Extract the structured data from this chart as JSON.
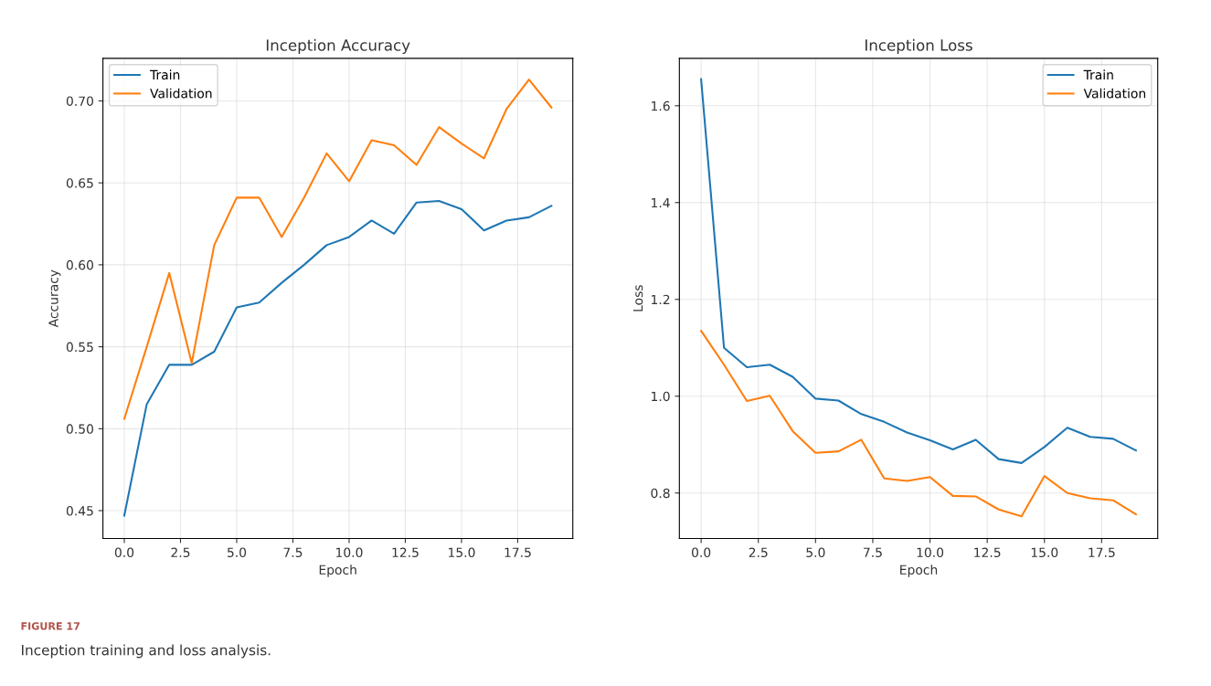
{
  "chart_data": [
    {
      "type": "line",
      "title": "Inception Accuracy",
      "xlabel": "Epoch",
      "ylabel": "Accuracy",
      "x": [
        0,
        1,
        2,
        3,
        4,
        5,
        6,
        7,
        8,
        9,
        10,
        11,
        12,
        13,
        14,
        15,
        16,
        17,
        18,
        19
      ],
      "series": [
        {
          "name": "Train",
          "color": "#1f77b4",
          "values": [
            0.447,
            0.515,
            0.539,
            0.539,
            0.547,
            0.574,
            0.577,
            0.589,
            0.6,
            0.612,
            0.617,
            0.627,
            0.619,
            0.638,
            0.639,
            0.634,
            0.621,
            0.627,
            0.629,
            0.636
          ]
        },
        {
          "name": "Validation",
          "color": "#ff7f0e",
          "values": [
            0.506,
            0.55,
            0.595,
            0.54,
            0.612,
            0.641,
            0.641,
            0.617,
            0.641,
            0.668,
            0.651,
            0.676,
            0.673,
            0.661,
            0.684,
            0.674,
            0.665,
            0.695,
            0.713,
            0.696
          ]
        }
      ],
      "xlim": [
        -0.95,
        19.95
      ],
      "xticks": [
        {
          "value": 0,
          "label": "0.0"
        },
        {
          "value": 2.5,
          "label": "2.5"
        },
        {
          "value": 5,
          "label": "5.0"
        },
        {
          "value": 7.5,
          "label": "7.5"
        },
        {
          "value": 10,
          "label": "10.0"
        },
        {
          "value": 12.5,
          "label": "12.5"
        },
        {
          "value": 15,
          "label": "15.0"
        },
        {
          "value": 17.5,
          "label": "17.5"
        }
      ],
      "ylim": [
        0.433,
        0.726
      ],
      "yticks": [
        {
          "value": 0.45,
          "label": "0.45"
        },
        {
          "value": 0.5,
          "label": "0.50"
        },
        {
          "value": 0.55,
          "label": "0.55"
        },
        {
          "value": 0.6,
          "label": "0.60"
        },
        {
          "value": 0.65,
          "label": "0.65"
        },
        {
          "value": 0.7,
          "label": "0.70"
        }
      ],
      "grid": true,
      "legend": "top left",
      "line_style": "solid",
      "annotations": [
        "FIGURE 17",
        "Inception training and loss analysis."
      ]
    },
    {
      "type": "line",
      "title": "Inception Loss",
      "xlabel": "Epoch",
      "ylabel": "Loss",
      "x": [
        0,
        1,
        2,
        3,
        4,
        5,
        6,
        7,
        8,
        9,
        10,
        11,
        12,
        13,
        14,
        15,
        16,
        17,
        18,
        19
      ],
      "series": [
        {
          "name": "Train",
          "color": "#1f77b4",
          "values": [
            1.655,
            1.1,
            1.06,
            1.065,
            1.04,
            0.995,
            0.991,
            0.963,
            0.947,
            0.925,
            0.909,
            0.89,
            0.91,
            0.87,
            0.862,
            0.895,
            0.935,
            0.916,
            0.912,
            0.888
          ]
        },
        {
          "name": "Validation",
          "color": "#ff7f0e",
          "values": [
            1.135,
            1.065,
            0.99,
            1.001,
            0.928,
            0.883,
            0.886,
            0.91,
            0.83,
            0.825,
            0.833,
            0.794,
            0.793,
            0.766,
            0.752,
            0.835,
            0.8,
            0.789,
            0.785,
            0.756
          ]
        }
      ],
      "xlim": [
        -0.95,
        19.95
      ],
      "xticks": [
        {
          "value": 0,
          "label": "0.0"
        },
        {
          "value": 2.5,
          "label": "2.5"
        },
        {
          "value": 5,
          "label": "5.0"
        },
        {
          "value": 7.5,
          "label": "7.5"
        },
        {
          "value": 10,
          "label": "10.0"
        },
        {
          "value": 12.5,
          "label": "12.5"
        },
        {
          "value": 15,
          "label": "15.0"
        },
        {
          "value": 17.5,
          "label": "17.5"
        }
      ],
      "ylim": [
        0.706,
        1.698
      ],
      "yticks": [
        {
          "value": 0.8,
          "label": "0.8"
        },
        {
          "value": 1.0,
          "label": "1.0"
        },
        {
          "value": 1.2,
          "label": "1.2"
        },
        {
          "value": 1.4,
          "label": "1.4"
        },
        {
          "value": 1.6,
          "label": "1.6"
        }
      ],
      "grid": true,
      "legend": "top right",
      "line_style": "solid"
    }
  ]
}
